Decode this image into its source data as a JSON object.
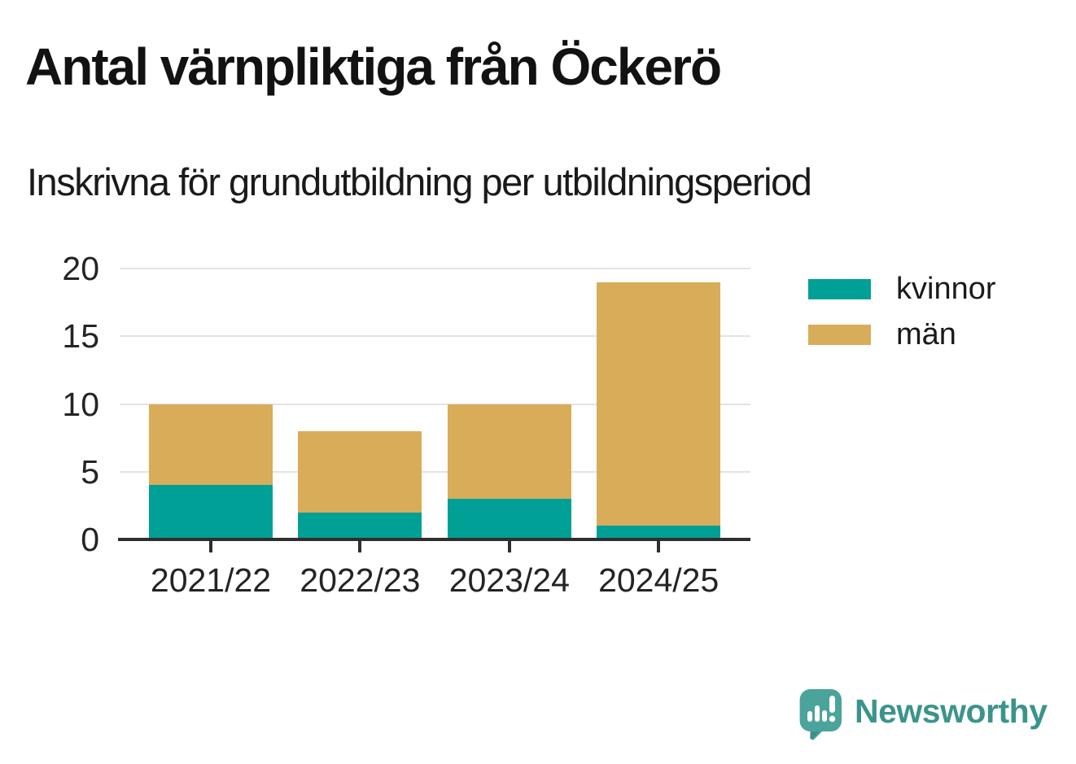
{
  "header": {
    "title": "Antal värnpliktiga från Öckerö",
    "subtitle": "Inskrivna för grundutbildning per utbildningsperiod"
  },
  "chart_data": {
    "type": "bar",
    "stacked": true,
    "title": "Antal värnpliktiga från Öckerö",
    "subtitle": "Inskrivna för grundutbildning per utbildningsperiod",
    "categories": [
      "2021/22",
      "2022/23",
      "2023/24",
      "2024/25"
    ],
    "series": [
      {
        "name": "kvinnor",
        "color": "#00a096",
        "values": [
          4,
          2,
          3,
          1
        ]
      },
      {
        "name": "män",
        "color": "#d9ac5a",
        "values": [
          6,
          6,
          7,
          18
        ]
      }
    ],
    "totals": [
      10,
      8,
      10,
      19
    ],
    "ylim": [
      0,
      20
    ],
    "yticks": [
      0,
      5,
      10,
      15,
      20
    ],
    "xlabel": "",
    "ylabel": "",
    "grid": true,
    "legend_position": "right-top"
  },
  "legend": {
    "items": [
      {
        "label": "kvinnor",
        "color": "#00a096"
      },
      {
        "label": "män",
        "color": "#d9ac5a"
      }
    ]
  },
  "colors": {
    "kvinnor": "#00a096",
    "man": "#d9ac5a",
    "axis": "#2e2e2e",
    "grid": "#e3e3e3",
    "text": "#242424",
    "brand": "#3b948c"
  },
  "footer": {
    "brand": "Newsworthy"
  }
}
